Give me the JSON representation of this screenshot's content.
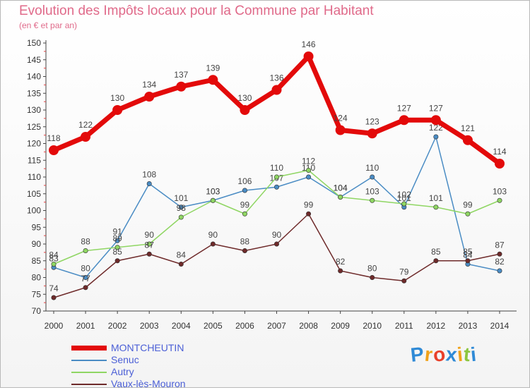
{
  "header": {
    "title": "Evolution des Impôts locaux pour la Commune par Habitant",
    "subtitle": "(en € et par an)"
  },
  "chart_data": {
    "type": "line",
    "x": [
      2000,
      2001,
      2002,
      2003,
      2004,
      2005,
      2006,
      2007,
      2008,
      2009,
      2010,
      2011,
      2012,
      2013,
      2014
    ],
    "ylim": [
      70,
      150
    ],
    "yticks": [
      70,
      75,
      80,
      85,
      90,
      95,
      100,
      105,
      110,
      115,
      120,
      125,
      130,
      135,
      140,
      145,
      150
    ],
    "grid": false,
    "legend_position": "bottom-left",
    "series": [
      {
        "name": "MONTCHEUTIN",
        "color": "#e30a0a",
        "values": [
          118,
          122,
          130,
          134,
          137,
          139,
          130,
          136,
          146,
          124,
          123,
          127,
          127,
          121,
          114
        ]
      },
      {
        "name": "Senuc",
        "color": "#4a8cc4",
        "values": [
          83,
          80,
          91,
          108,
          101,
          103,
          106,
          107,
          110,
          104,
          110,
          101,
          122,
          84,
          82
        ]
      },
      {
        "name": "Autry",
        "color": "#8fd663",
        "values": [
          84,
          88,
          89,
          90,
          98,
          103,
          99,
          110,
          112,
          104,
          103,
          102,
          101,
          99,
          103
        ]
      },
      {
        "name": "Vaux-lès-Mouron",
        "color": "#6e2a2a",
        "values": [
          74,
          77,
          85,
          87,
          84,
          90,
          88,
          90,
          99,
          82,
          80,
          79,
          85,
          85,
          87
        ]
      }
    ]
  },
  "logo": {
    "letters": [
      "P",
      "r",
      "o",
      "x",
      "i",
      "t",
      "i"
    ],
    "colors": [
      "#2f8ad6",
      "#f0a21a",
      "#e8402a",
      "#2f8ad6",
      "#f0a21a",
      "#8cc63f",
      "#2f8ad6"
    ],
    "text": "Proxiti"
  }
}
